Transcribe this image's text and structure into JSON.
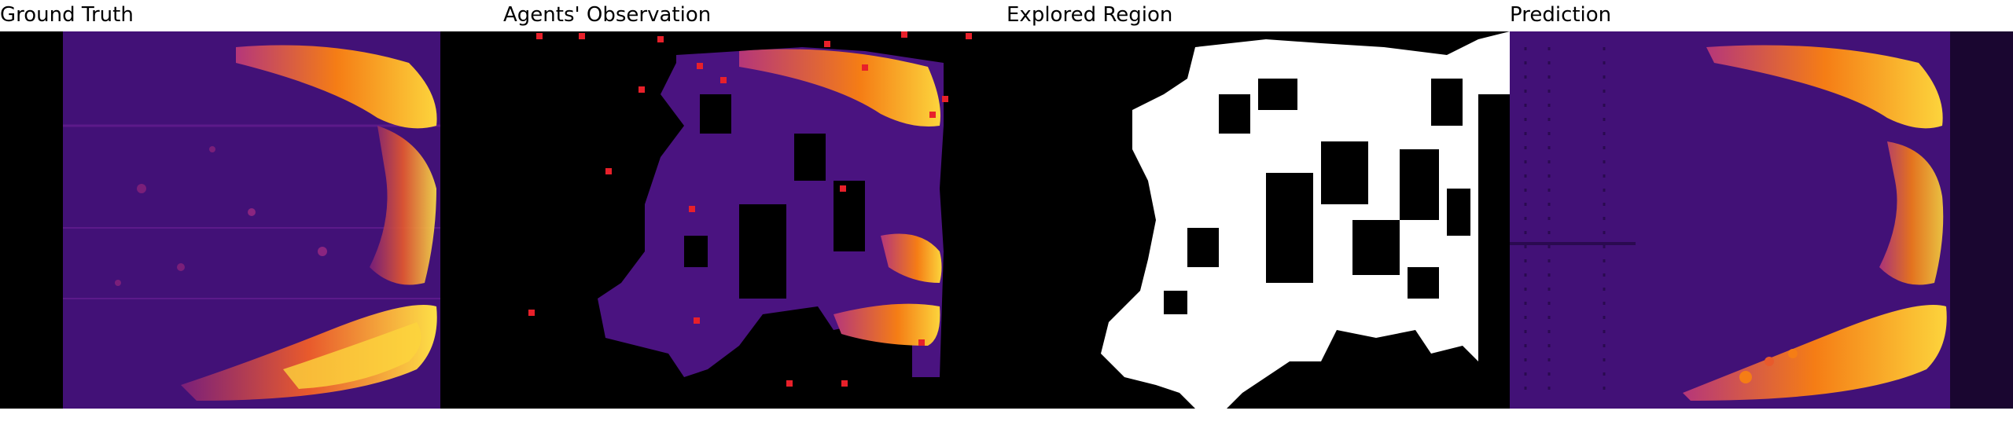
{
  "panels": [
    {
      "title": "Ground Truth"
    },
    {
      "title": "Agents' Observation"
    },
    {
      "title": "Explored Region"
    },
    {
      "title": "Prediction"
    }
  ],
  "colors": {
    "background": "#000000",
    "field_low": "#3b0f6f",
    "field_mid": "#b5367a",
    "field_high": "#fbb535",
    "field_peak": "#fcfdbf",
    "explored": "#ffffff",
    "agent_marker": "#e8202a"
  }
}
